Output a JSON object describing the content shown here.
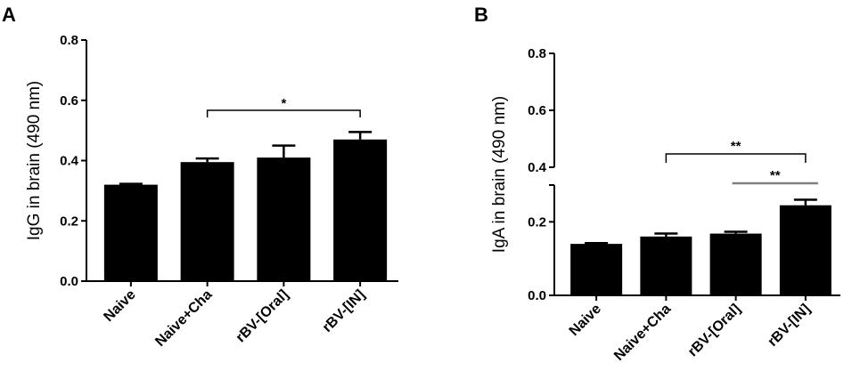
{
  "chart_data": [
    {
      "panel_label": "A",
      "type": "bar",
      "categories": [
        "Naive",
        "Naive+Cha",
        "rBV-[Oral]",
        "rBV-[IN]"
      ],
      "values": [
        0.32,
        0.395,
        0.41,
        0.47
      ],
      "errors": [
        0.003,
        0.012,
        0.04,
        0.025
      ],
      "ylabel": "IgG in brain (490 nm)",
      "ylim": [
        0,
        0.8
      ],
      "yticks": [
        "0.0",
        "0.2",
        "0.4",
        "0.6",
        "0.8"
      ],
      "significance": [
        {
          "from": 1,
          "to": 3,
          "label": "*",
          "color": "#000000"
        }
      ]
    },
    {
      "panel_label": "B",
      "type": "bar",
      "categories": [
        "Naive",
        "Naive+Cha",
        "rBV-[Oral]",
        "rBV-[IN]"
      ],
      "values": [
        0.14,
        0.16,
        0.168,
        0.245
      ],
      "errors": [
        0.002,
        0.008,
        0.005,
        0.015
      ],
      "ylabel": "IgA in brain (490 nm)",
      "y_broken_axis": true,
      "lower_range": [
        0,
        0.3
      ],
      "lower_ticks": [
        "0.0",
        "0.2"
      ],
      "upper_range": [
        0.4,
        0.8
      ],
      "upper_ticks": [
        "0.4",
        "0.6",
        "0.8"
      ],
      "significance": [
        {
          "from": 1,
          "to": 3,
          "label": "**",
          "color": "#000000"
        },
        {
          "from": 2,
          "to": 3,
          "label": "**",
          "color": "#808080"
        }
      ]
    }
  ]
}
